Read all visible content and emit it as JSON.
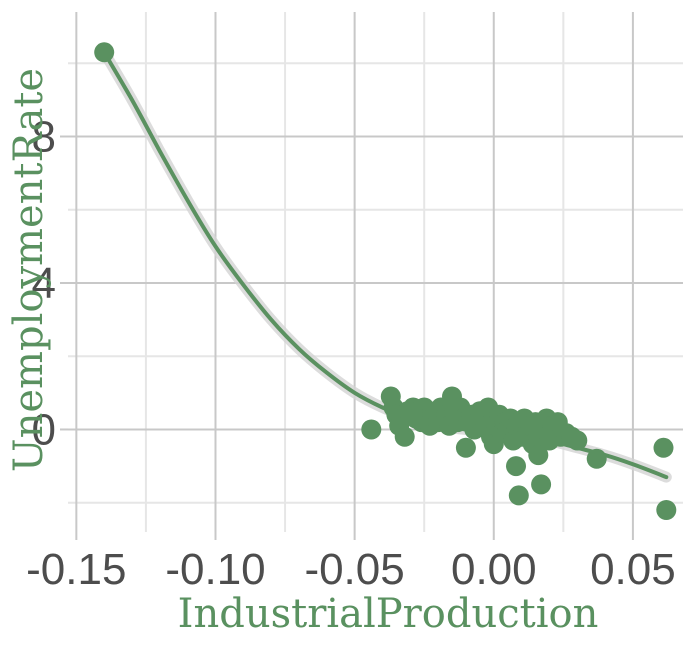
{
  "colors": {
    "accent": "#5a9160",
    "grid_major": "#c8c8c8",
    "grid_minor": "#e6e6e6",
    "ribbon": "#d3d3d3",
    "tick_text": "#4d4d4d"
  },
  "chart_data": {
    "type": "scatter",
    "title": "",
    "xlabel": "IndustrialProduction",
    "ylabel": "UnemploymentRate",
    "xlim": [
      -0.153,
      0.068
    ],
    "ylim": [
      -2.8,
      11.4
    ],
    "x_ticks": [
      -0.15,
      -0.1,
      -0.05,
      0.0,
      0.05
    ],
    "x_tick_labels": [
      "-0.15",
      "-0.10",
      "-0.05",
      "0.00",
      "0.05"
    ],
    "y_ticks": [
      0,
      4,
      8
    ],
    "y_tick_labels": [
      "0",
      "4",
      "8"
    ],
    "grid": true,
    "legend": "none",
    "series": [
      {
        "points": [
          [
            -0.14,
            10.3
          ],
          [
            -0.044,
            0.0
          ],
          [
            -0.037,
            0.9
          ],
          [
            -0.036,
            0.6
          ],
          [
            -0.035,
            0.4
          ],
          [
            -0.034,
            0.1
          ],
          [
            -0.033,
            0.3
          ],
          [
            -0.032,
            -0.2
          ],
          [
            -0.031,
            0.5
          ],
          [
            -0.03,
            0.4
          ],
          [
            -0.029,
            0.6
          ],
          [
            -0.028,
            0.3
          ],
          [
            -0.027,
            0.5
          ],
          [
            -0.026,
            0.2
          ],
          [
            -0.025,
            0.6
          ],
          [
            -0.024,
            0.3
          ],
          [
            -0.023,
            0.1
          ],
          [
            -0.022,
            0.4
          ],
          [
            -0.021,
            0.5
          ],
          [
            -0.02,
            0.2
          ],
          [
            -0.019,
            0.6
          ],
          [
            -0.018,
            0.3
          ],
          [
            -0.017,
            0.4
          ],
          [
            -0.016,
            0.1
          ],
          [
            -0.015,
            0.9
          ],
          [
            -0.014,
            0.5
          ],
          [
            -0.013,
            0.2
          ],
          [
            -0.012,
            0.6
          ],
          [
            -0.011,
            0.3
          ],
          [
            -0.01,
            -0.5
          ],
          [
            -0.009,
            0.2
          ],
          [
            -0.008,
            0.4
          ],
          [
            -0.007,
            0.0
          ],
          [
            -0.006,
            0.3
          ],
          [
            -0.005,
            0.5
          ],
          [
            -0.004,
            0.1
          ],
          [
            -0.003,
            0.2
          ],
          [
            -0.002,
            0.6
          ],
          [
            -0.001,
            -0.2
          ],
          [
            0.0,
            0.3
          ],
          [
            0.0,
            -0.4
          ],
          [
            0.001,
            0.1
          ],
          [
            0.002,
            0.4
          ],
          [
            0.003,
            -0.1
          ],
          [
            0.004,
            0.2
          ],
          [
            0.005,
            0.0
          ],
          [
            0.006,
            0.3
          ],
          [
            0.007,
            -0.3
          ],
          [
            0.008,
            0.1
          ],
          [
            0.008,
            -1.0
          ],
          [
            0.009,
            0.2
          ],
          [
            0.009,
            -1.8
          ],
          [
            0.01,
            -0.2
          ],
          [
            0.011,
            0.3
          ],
          [
            0.012,
            -0.1
          ],
          [
            0.013,
            0.1
          ],
          [
            0.014,
            -0.4
          ],
          [
            0.015,
            0.2
          ],
          [
            0.016,
            -0.2
          ],
          [
            0.016,
            -0.7
          ],
          [
            0.017,
            -1.5
          ],
          [
            0.018,
            0.0
          ],
          [
            0.019,
            0.3
          ],
          [
            0.02,
            -0.3
          ],
          [
            0.021,
            0.1
          ],
          [
            0.022,
            -0.1
          ],
          [
            0.023,
            0.2
          ],
          [
            0.024,
            -0.2
          ],
          [
            0.026,
            -0.1
          ],
          [
            0.028,
            -0.2
          ],
          [
            0.03,
            -0.3
          ],
          [
            0.037,
            -0.8
          ],
          [
            0.061,
            -0.5
          ],
          [
            0.062,
            -2.2
          ]
        ]
      }
    ],
    "fit_curve": {
      "x": [
        -0.14,
        -0.13,
        -0.12,
        -0.11,
        -0.1,
        -0.09,
        -0.08,
        -0.07,
        -0.06,
        -0.05,
        -0.04,
        -0.03,
        -0.02,
        -0.01,
        0.0,
        0.01,
        0.02,
        0.03,
        0.04,
        0.05,
        0.062
      ],
      "y": [
        10.3,
        9.0,
        7.6,
        6.25,
        5.0,
        3.95,
        3.0,
        2.2,
        1.55,
        1.0,
        0.6,
        0.3,
        0.1,
        0.0,
        -0.05,
        -0.15,
        -0.3,
        -0.5,
        -0.7,
        -0.95,
        -1.3
      ]
    }
  }
}
